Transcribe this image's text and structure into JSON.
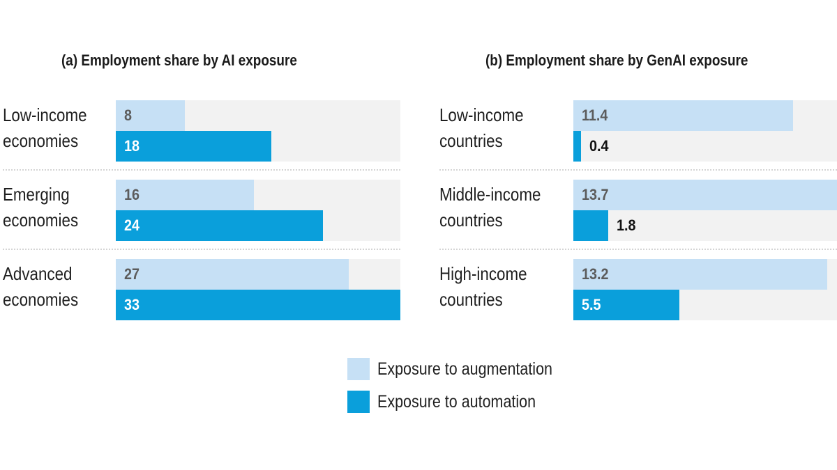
{
  "colors": {
    "augmentation": "#c6e0f5",
    "automation": "#0a9fdb",
    "track": "#f2f2f2"
  },
  "legend": {
    "augmentation": "Exposure to augmentation",
    "automation": "Exposure to automation"
  },
  "chart_data": [
    {
      "type": "bar",
      "orientation": "horizontal",
      "title": "(a) Employment share by AI exposure",
      "categories": [
        "Low-income economies",
        "Emerging economies",
        "Advanced economies"
      ],
      "category_lines": [
        [
          "Low-income",
          "economies"
        ],
        [
          "Emerging",
          "economies"
        ],
        [
          "Advanced",
          "economies"
        ]
      ],
      "series": [
        {
          "name": "Exposure to augmentation",
          "values": [
            8,
            16,
            27
          ],
          "labels": [
            "8",
            "16",
            "27"
          ]
        },
        {
          "name": "Exposure to automation",
          "values": [
            18,
            24,
            33
          ],
          "labels": [
            "18",
            "24",
            "33"
          ]
        }
      ],
      "xlim": [
        0,
        33
      ]
    },
    {
      "type": "bar",
      "orientation": "horizontal",
      "title": "(b) Employment share by GenAI exposure",
      "categories": [
        "Low-income countries",
        "Middle-income countries",
        "High-income countries"
      ],
      "category_lines": [
        [
          "Low-income",
          "countries"
        ],
        [
          "Middle-income",
          "countries"
        ],
        [
          "High-income",
          "countries"
        ]
      ],
      "series": [
        {
          "name": "Exposure to augmentation",
          "values": [
            11.4,
            13.7,
            13.2
          ],
          "labels": [
            "11.4",
            "13.7",
            "13.2"
          ]
        },
        {
          "name": "Exposure to automation",
          "values": [
            0.4,
            1.8,
            5.5
          ],
          "labels": [
            "0.4",
            "1.8",
            "5.5"
          ]
        }
      ],
      "xlim": [
        0,
        13.7
      ]
    }
  ]
}
